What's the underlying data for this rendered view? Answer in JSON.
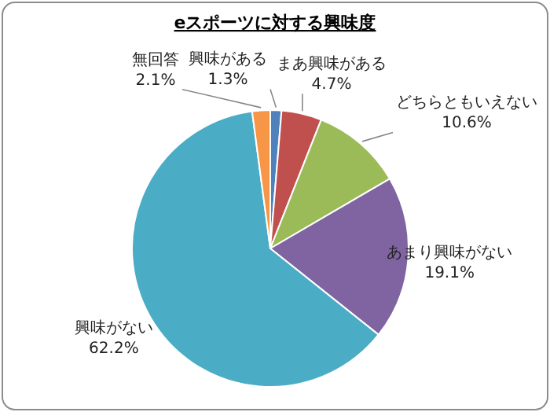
{
  "chart_data": {
    "type": "pie",
    "title": "eスポーツに対する興味度",
    "categories": [
      "興味がある",
      "まあ興味がある",
      "どちらともいえない",
      "あまり興味がない",
      "興味がない",
      "無回答"
    ],
    "values": [
      1.3,
      4.7,
      10.6,
      19.1,
      62.2,
      2.1
    ],
    "value_labels": [
      "1.3%",
      "4.7%",
      "10.6%",
      "19.1%",
      "62.2%",
      "2.1%"
    ],
    "colors": [
      "#4f81bd",
      "#c0504d",
      "#9bbb59",
      "#8064a2",
      "#4bacc6",
      "#f79646"
    ],
    "legend": false
  }
}
